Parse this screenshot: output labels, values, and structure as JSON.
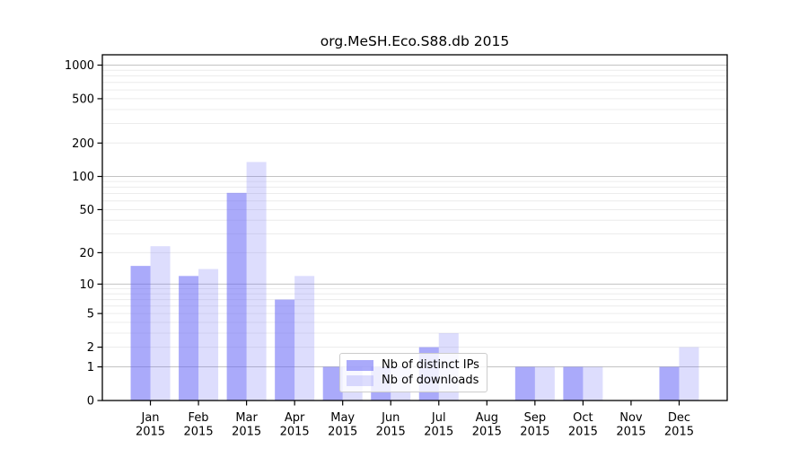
{
  "chart_data": {
    "type": "bar",
    "title": "org.MeSH.Eco.S88.db 2015",
    "categories": [
      "Jan",
      "Feb",
      "Mar",
      "Apr",
      "May",
      "Jun",
      "Jul",
      "Aug",
      "Sep",
      "Oct",
      "Nov",
      "Dec"
    ],
    "year_label": "2015",
    "series": [
      {
        "name": "Nb of distinct IPs",
        "values": [
          15,
          12,
          71,
          7,
          1,
          1,
          2,
          0,
          1,
          1,
          0,
          1
        ],
        "color": "rgba(100,100,245,0.55)"
      },
      {
        "name": "Nb of downloads",
        "values": [
          23,
          14,
          135,
          12,
          1,
          1,
          3,
          0,
          1,
          1,
          0,
          2
        ],
        "color": "rgba(100,100,245,0.22)"
      }
    ],
    "yscale": "log1p",
    "ylim": [
      0,
      1000
    ],
    "yticks": [
      0,
      1,
      2,
      5,
      10,
      20,
      50,
      100,
      200,
      500,
      1000
    ],
    "major_gridlines": [
      1,
      10,
      100,
      1000
    ],
    "minor_gridlines": [
      2,
      3,
      4,
      5,
      6,
      7,
      8,
      9,
      20,
      30,
      40,
      50,
      60,
      70,
      80,
      90,
      200,
      300,
      400,
      500,
      600,
      700,
      800,
      900
    ],
    "grid": true,
    "legend_position": "inside lower-center-left",
    "xlabel": "",
    "ylabel": "",
    "colors": {
      "minor_grid": "#ececec",
      "major_grid": "#c3c3c3",
      "axis": "#000000",
      "background": "#ffffff",
      "ips_swatch": "#aaaaf9",
      "downloads_swatch": "#dddDfb"
    }
  }
}
